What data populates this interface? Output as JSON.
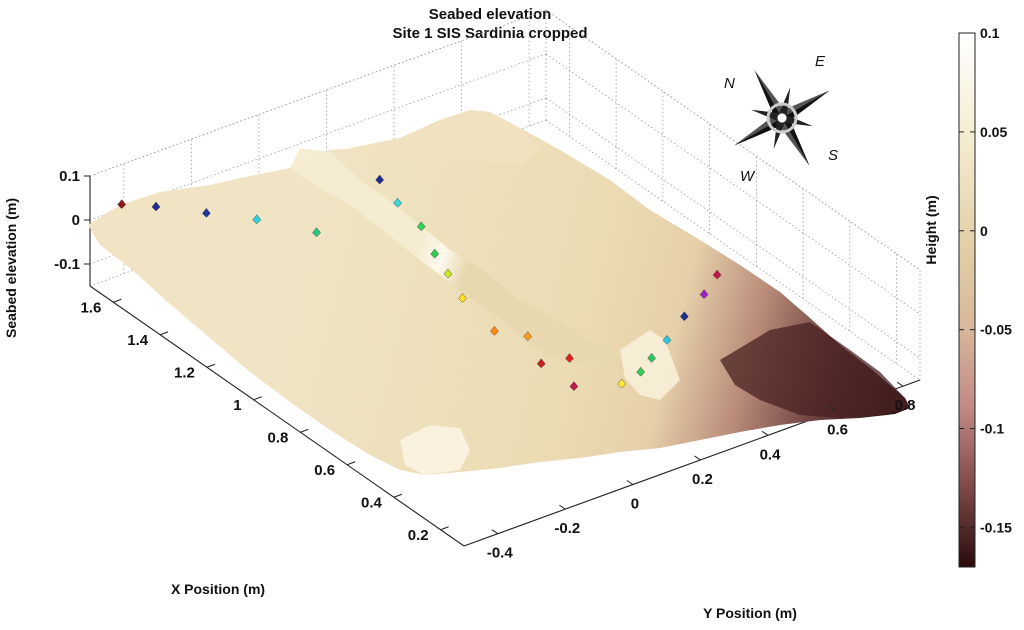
{
  "chart_data": {
    "type": "surface3d",
    "title": "Seabed elevation",
    "subtitle": "Site 1 SIS Sardinia cropped",
    "xlabel": "X Position (m)",
    "ylabel": "Y Position (m)",
    "zlabel": "Seabed elevation (m)",
    "colorbar_label": "Height (m)",
    "x_ticks": [
      "0.2",
      "0.4",
      "0.6",
      "0.8",
      "1",
      "1.2",
      "1.4",
      "1.6"
    ],
    "y_ticks": [
      "-0.4",
      "-0.2",
      "0",
      "0.2",
      "0.4",
      "0.6",
      "0.8"
    ],
    "z_ticks": [
      "0.1",
      "0",
      "-0.1"
    ],
    "colorbar_ticks": [
      "0.1",
      "0.05",
      "0",
      "-0.05",
      "-0.1",
      "-0.15"
    ],
    "xlim": [
      0.1,
      1.7
    ],
    "ylim": [
      -0.5,
      0.85
    ],
    "zlim": [
      -0.15,
      0.1
    ],
    "clim": [
      -0.17,
      0.1
    ],
    "colormap": "pink",
    "compass": {
      "N": "N",
      "E": "E",
      "S": "S",
      "W": "W"
    },
    "markers": [
      {
        "x": 1.68,
        "y": -0.42,
        "color": "#8b1a1a"
      },
      {
        "x": 1.62,
        "y": -0.36,
        "color": "#1f2e8f"
      },
      {
        "x": 1.52,
        "y": -0.28,
        "color": "#1f3a9a"
      },
      {
        "x": 1.42,
        "y": -0.2,
        "color": "#2ad4e0"
      },
      {
        "x": 1.28,
        "y": -0.12,
        "color": "#2ac880"
      },
      {
        "x": 1.4,
        "y": 0.15,
        "color": "#1f2e8f"
      },
      {
        "x": 1.28,
        "y": 0.12,
        "color": "#3ad8d8"
      },
      {
        "x": 1.15,
        "y": 0.1,
        "color": "#34d058"
      },
      {
        "x": 1.02,
        "y": 0.05,
        "color": "#30d050"
      },
      {
        "x": 0.92,
        "y": 0.02,
        "color": "#c8e820"
      },
      {
        "x": 0.8,
        "y": -0.02,
        "color": "#ffe020"
      },
      {
        "x": 0.62,
        "y": -0.05,
        "color": "#ff8a10"
      },
      {
        "x": 0.55,
        "y": 0.0,
        "color": "#ff9a20"
      },
      {
        "x": 0.42,
        "y": -0.05,
        "color": "#c82020"
      },
      {
        "x": 0.4,
        "y": 0.02,
        "color": "#e02020"
      },
      {
        "x": 0.28,
        "y": -0.05,
        "color": "#c0184a"
      },
      {
        "x": 0.22,
        "y": 0.05,
        "color": "#ffee30"
      },
      {
        "x": 0.24,
        "y": 0.12,
        "color": "#3ac858"
      },
      {
        "x": 0.28,
        "y": 0.18,
        "color": "#30c860"
      },
      {
        "x": 0.33,
        "y": 0.26,
        "color": "#30c8e0"
      },
      {
        "x": 0.4,
        "y": 0.36,
        "color": "#1f2e8f"
      },
      {
        "x": 0.46,
        "y": 0.46,
        "color": "#a020c8"
      },
      {
        "x": 0.52,
        "y": 0.54,
        "color": "#c01850"
      }
    ]
  }
}
